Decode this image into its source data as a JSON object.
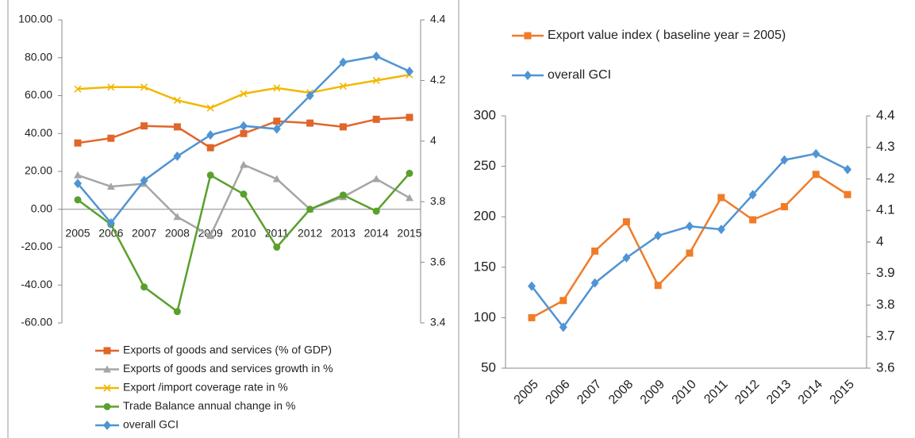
{
  "chart_data": [
    {
      "type": "line",
      "categories": [
        "2005",
        "2006",
        "2007",
        "2008",
        "2009",
        "2010",
        "2011",
        "2012",
        "2013",
        "2014",
        "2015"
      ],
      "ylim": [
        -60,
        100
      ],
      "yticks": [
        {
          "value": -60,
          "label": "-60.00"
        },
        {
          "value": -40,
          "label": "-40.00"
        },
        {
          "value": -20,
          "label": "-20.00"
        },
        {
          "value": 0,
          "label": "0.00"
        },
        {
          "value": 20,
          "label": "20.00"
        },
        {
          "value": 40,
          "label": "40.00"
        },
        {
          "value": 60,
          "label": "60.00"
        },
        {
          "value": 80,
          "label": "80.00"
        },
        {
          "value": 100,
          "label": "100.00"
        }
      ],
      "y2lim": [
        3.4,
        4.4
      ],
      "y2ticks": [
        3.4,
        3.6,
        3.8,
        4,
        4.2,
        4.4
      ],
      "grid": false,
      "legend": "bottom",
      "series": [
        {
          "name": "Exports of goods and services (% of GDP)",
          "color": "#e0662a",
          "marker": "square",
          "values": [
            35,
            37.5,
            44,
            43.5,
            32.5,
            40,
            46.5,
            45.5,
            43.5,
            47.5,
            48.5
          ]
        },
        {
          "name": "Exports of goods and services growth in %",
          "color": "#a5a5a5",
          "marker": "triangle",
          "values": [
            18,
            12,
            13.5,
            -4,
            -14,
            23.5,
            16,
            0,
            6.5,
            16,
            6
          ]
        },
        {
          "name": "Export /import coverage rate in %",
          "color": "#f2b800",
          "marker": "x",
          "values": [
            63.5,
            64.5,
            64.5,
            57.5,
            53.5,
            61,
            64,
            61.5,
            65,
            68,
            71
          ]
        },
        {
          "name": "Trade Balance annual change in %",
          "color": "#5aa02c",
          "marker": "circle",
          "values": [
            5,
            -8,
            -41,
            -54,
            18,
            8,
            -20,
            0,
            7.5,
            -1,
            19
          ]
        },
        {
          "name": "overall GCI",
          "color": "#4f94d4",
          "marker": "diamond",
          "axis": "y2",
          "values": [
            3.86,
            3.73,
            3.87,
            3.95,
            4.02,
            4.05,
            4.04,
            4.15,
            4.26,
            4.28,
            4.23
          ]
        }
      ]
    },
    {
      "type": "line",
      "categories": [
        "2005",
        "2006",
        "2007",
        "2008",
        "2009",
        "2010",
        "2011",
        "2012",
        "2013",
        "2014",
        "2015"
      ],
      "ylim": [
        50,
        300
      ],
      "yticks": [
        50,
        100,
        150,
        200,
        250,
        300
      ],
      "y2lim": [
        3.6,
        4.4
      ],
      "y2ticks": [
        3.6,
        3.7,
        3.8,
        3.9,
        4,
        4.1,
        4.2,
        4.3,
        4.4
      ],
      "grid": false,
      "legend": "top",
      "series": [
        {
          "name": "Export value index ( baseline year = 2005)",
          "color": "#f07c28",
          "marker": "square",
          "values": [
            100,
            117,
            166,
            195,
            132,
            164,
            219,
            197,
            210,
            242,
            222
          ]
        },
        {
          "name": "overall GCI",
          "color": "#4f94d4",
          "marker": "diamond",
          "axis": "y2",
          "values": [
            3.86,
            3.73,
            3.87,
            3.95,
            4.02,
            4.05,
            4.04,
            4.15,
            4.26,
            4.28,
            4.23
          ]
        }
      ]
    }
  ]
}
